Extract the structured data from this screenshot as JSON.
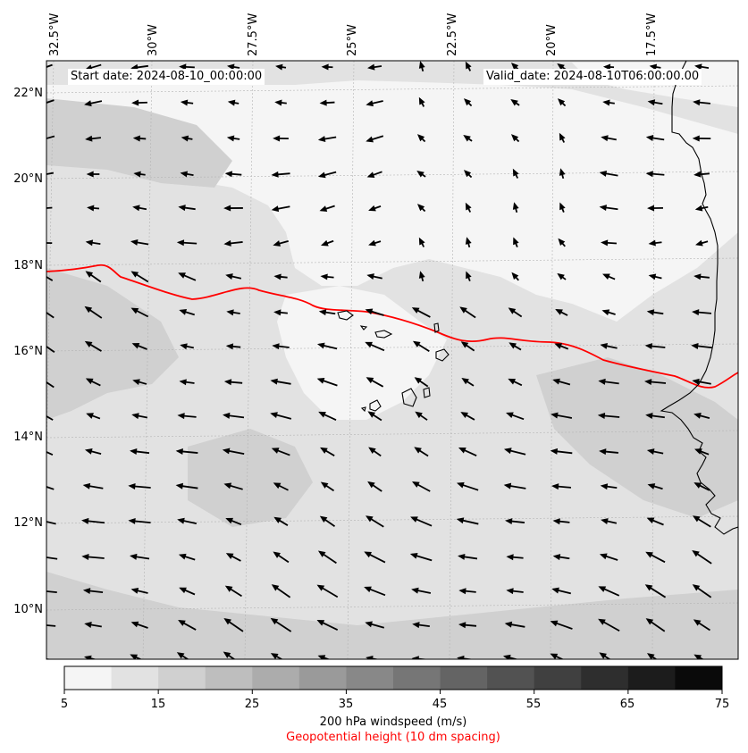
{
  "header": {
    "start_date": "Start date: 2024-08-10_00:00:00",
    "valid_date": "Valid_date: 2024-08-10T06:00:00.00"
  },
  "longitude_labels": [
    "32.5°W",
    "30°W",
    "27.5°W",
    "25°W",
    "22.5°W",
    "20°W",
    "17.5°W"
  ],
  "latitude_labels": [
    "22°N",
    "20°N",
    "18°N",
    "16°N",
    "14°N",
    "12°N",
    "10°N"
  ],
  "colorbar": {
    "ticks": [
      "5",
      "15",
      "25",
      "35",
      "45",
      "55",
      "65",
      "75"
    ],
    "colors": [
      "#f5f5f5",
      "#e2e2e2",
      "#d0d0d0",
      "#bebebe",
      "#acacac",
      "#9a9a9a",
      "#888888",
      "#767676",
      "#646464",
      "#525252",
      "#404040",
      "#2e2e2e",
      "#1c1c1c",
      "#0a0a0a"
    ],
    "label": "200 hPa windspeed (m/s)",
    "sublabel": "Geopotential height (10 dm spacing)",
    "sublabel_color": "#ff0000"
  },
  "contour_color": "#ff0000"
}
